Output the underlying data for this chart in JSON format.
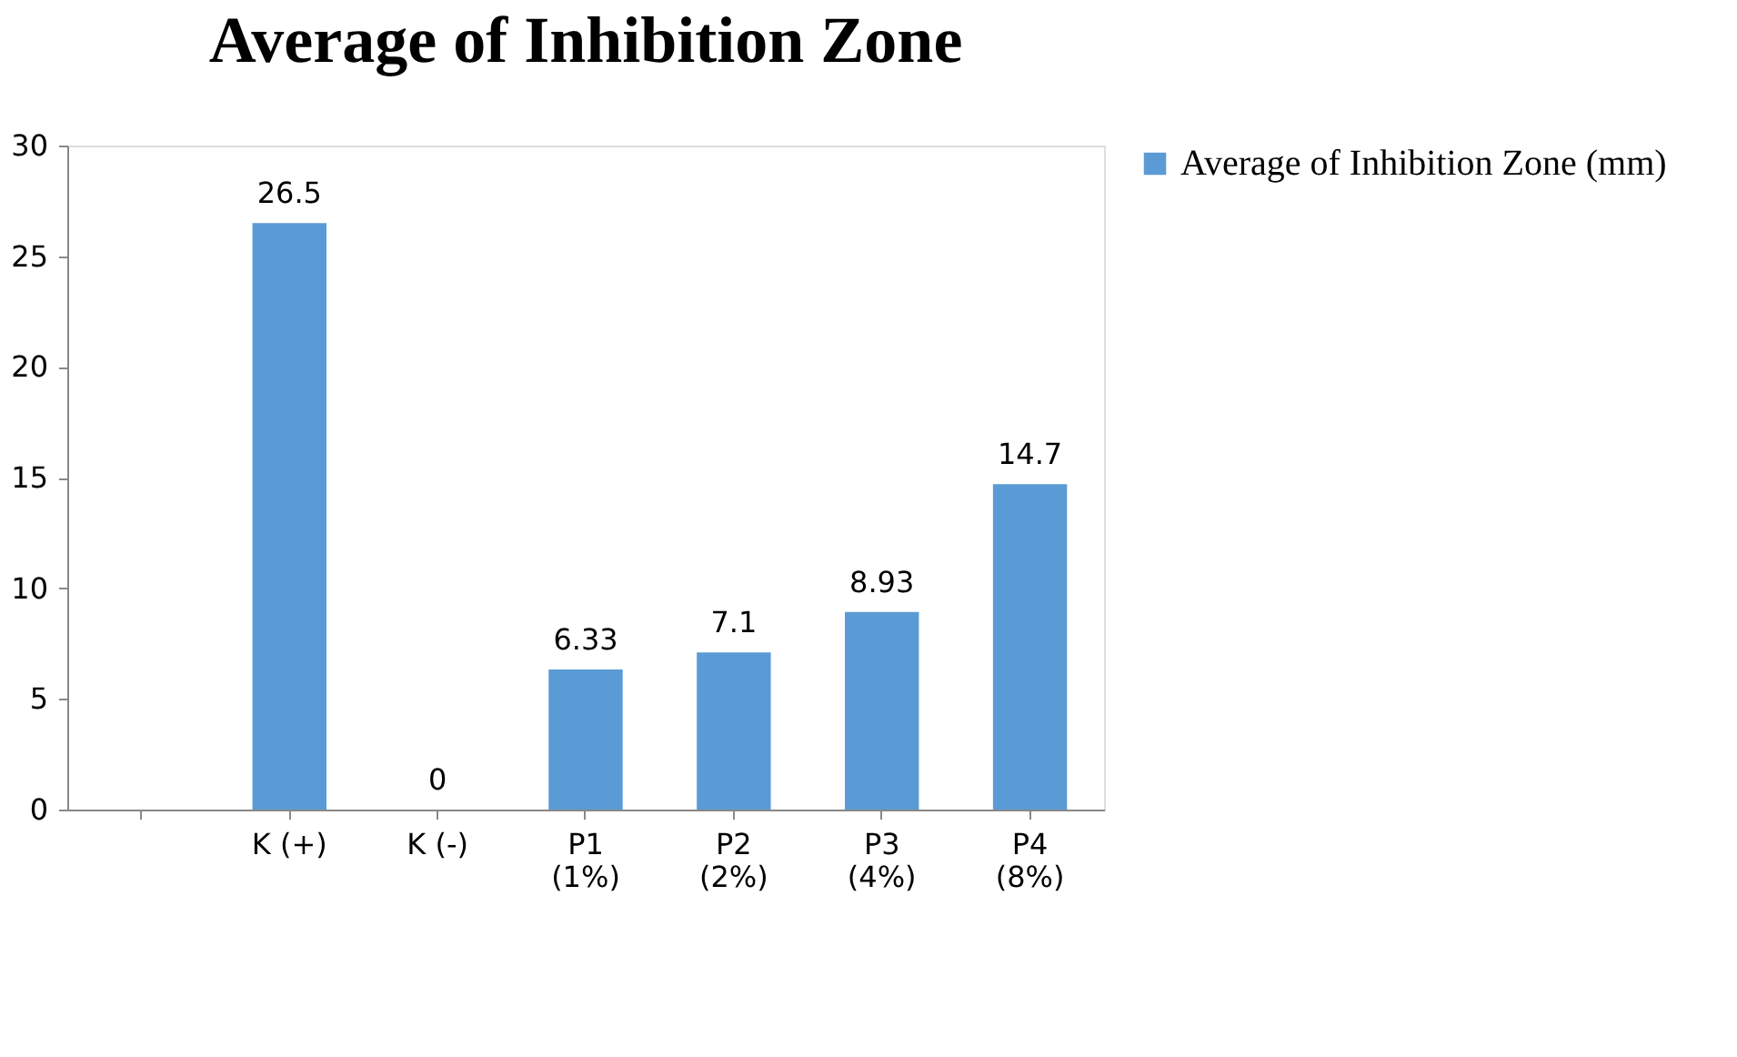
{
  "chart_data": {
    "type": "bar",
    "title": "Average of Inhibition Zone",
    "categories": [
      null,
      "K (+)",
      "K (-)",
      "P1\n(1%)",
      "P2\n(2%)",
      "P3\n(4%)",
      "P4\n(8%)"
    ],
    "series": [
      {
        "name": "Average of Inhibition Zone (mm)",
        "color": "#5b9bd5",
        "values": [
          null,
          26.5,
          0,
          6.33,
          7.1,
          8.93,
          14.7
        ]
      }
    ],
    "ylim": [
      0,
      30
    ],
    "yticks": [
      0,
      5,
      10,
      15,
      20,
      25,
      30
    ],
    "grid": false,
    "legend": "right",
    "data_labels": true
  }
}
